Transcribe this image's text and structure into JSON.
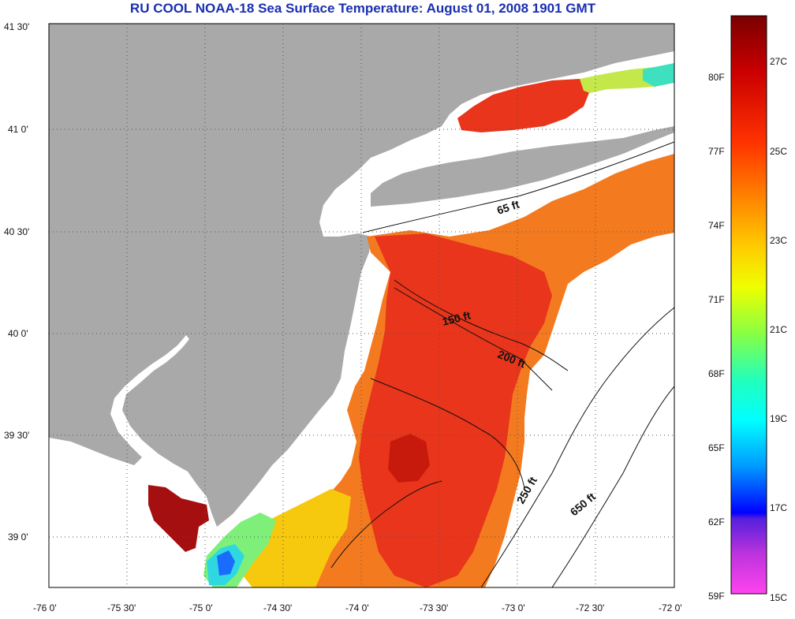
{
  "title": "RU COOL  NOAA-18  Sea Surface Temperature:  August 01, 2008 1901 GMT",
  "axes": {
    "lat_labels": [
      "41 30'",
      "41 0'",
      "40 30'",
      "40 0'",
      "39 30'",
      "39 0'"
    ],
    "lon_labels": [
      "-76 0'",
      "-75 30'",
      "-75 0'",
      "-74 30'",
      "-74 0'",
      "-73 30'",
      "-73 0'",
      "-72 30'",
      "-72 0'"
    ]
  },
  "contours": [
    {
      "label": "65 ft"
    },
    {
      "label": "150 ft"
    },
    {
      "label": "200 ft"
    },
    {
      "label": "250 ft"
    },
    {
      "label": "650 ft"
    }
  ],
  "colorbar": {
    "f_labels": [
      "80F",
      "77F",
      "74F",
      "71F",
      "68F",
      "65F",
      "62F",
      "59F"
    ],
    "c_labels": [
      "27C",
      "25C",
      "23C",
      "21C",
      "19C",
      "17C",
      "15C"
    ]
  },
  "colors": {
    "land": "#a9a9a9",
    "title": "#1a2fb0",
    "warm": "#e8351b",
    "hot": "#b21008"
  }
}
